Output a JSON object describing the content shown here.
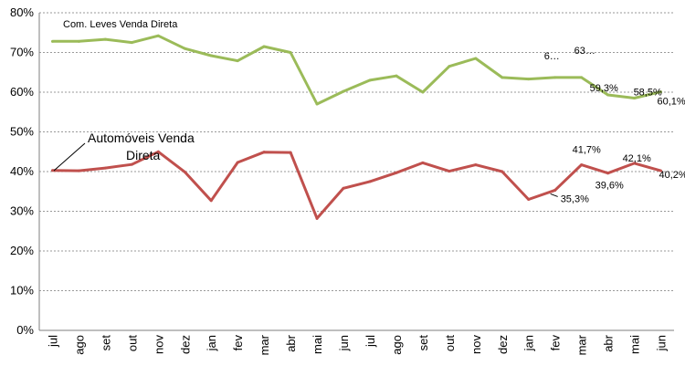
{
  "chart_data": {
    "type": "line",
    "title": "",
    "xlabel": "",
    "ylabel": "",
    "categories": [
      "jul",
      "ago",
      "set",
      "out",
      "nov",
      "dez",
      "jan",
      "fev",
      "mar",
      "abr",
      "mai",
      "jun",
      "jul",
      "ago",
      "set",
      "out",
      "nov",
      "dez",
      "jan",
      "fev",
      "mar",
      "abr",
      "mai",
      "jun"
    ],
    "yticks": [
      "0%",
      "10%",
      "20%",
      "30%",
      "40%",
      "50%",
      "60%",
      "70%",
      "80%"
    ],
    "ylim": [
      0,
      80
    ],
    "grid": true,
    "legend": "none",
    "series": [
      {
        "name": "Com. Leves Venda Direta",
        "color": "#9bbb59",
        "values": [
          72.8,
          72.8,
          73.3,
          72.5,
          74.2,
          71.0,
          69.2,
          67.9,
          71.5,
          70.0,
          57.0,
          60.2,
          63.0,
          64.1,
          60.0,
          66.5,
          68.5,
          63.7,
          63.3,
          63.7,
          63.7,
          59.3,
          58.5,
          60.1
        ],
        "data_labels": [
          {
            "index": 19,
            "text": "6…"
          },
          {
            "index": 20,
            "text": "63…"
          },
          {
            "index": 21,
            "text": "59,3%"
          },
          {
            "index": 22,
            "text": "58,5%"
          },
          {
            "index": 23,
            "text": "60,1%"
          }
        ]
      },
      {
        "name": "Automóveis Venda Direta",
        "color": "#c0504d",
        "values": [
          40.3,
          40.2,
          40.9,
          41.8,
          45.0,
          39.9,
          32.7,
          42.3,
          44.9,
          44.8,
          28.2,
          35.8,
          37.5,
          39.7,
          42.2,
          40.1,
          41.7,
          40.0,
          33.0,
          35.3,
          41.7,
          39.6,
          42.1,
          40.2
        ],
        "data_labels": [
          {
            "index": 19,
            "text": "35,3%"
          },
          {
            "index": 20,
            "text": "41,7%"
          },
          {
            "index": 21,
            "text": "39,6%"
          },
          {
            "index": 22,
            "text": "42,1%"
          },
          {
            "index": 23,
            "text": "40,2%"
          }
        ]
      }
    ],
    "annotations": {
      "green_series": "Com. Leves Venda Direta",
      "red_series_line1": "Automóveis Venda",
      "red_series_line2": "Direta"
    }
  }
}
